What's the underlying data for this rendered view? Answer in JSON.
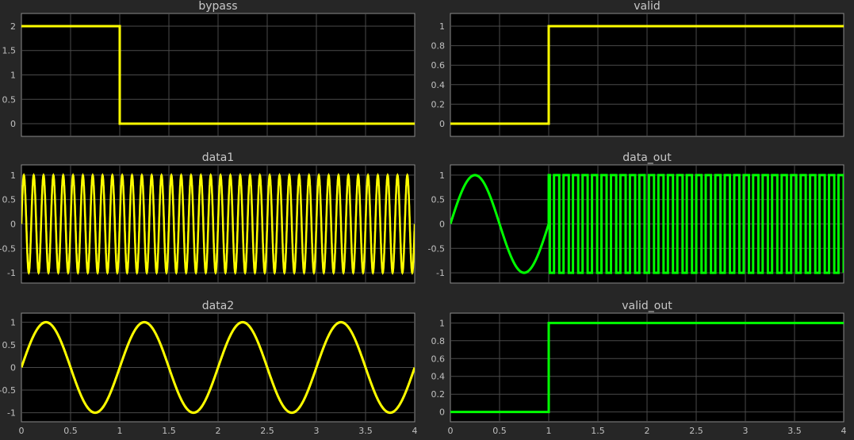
{
  "chart_data": [
    {
      "type": "line",
      "title": "bypass",
      "color": "#ffff00",
      "ylim": [
        -0.26,
        2.26
      ],
      "xlim": [
        0,
        4
      ],
      "yticks": [
        0,
        0.5,
        1,
        1.5,
        2
      ],
      "grid": true,
      "signal": {
        "kind": "step",
        "points": [
          [
            0,
            2
          ],
          [
            1,
            2
          ],
          [
            1,
            0
          ],
          [
            4,
            0
          ]
        ]
      }
    },
    {
      "type": "line",
      "title": "valid",
      "color": "#ffff00",
      "ylim": [
        -0.13,
        1.13
      ],
      "xlim": [
        0,
        4
      ],
      "yticks": [
        0,
        0.2,
        0.4,
        0.6,
        0.8,
        1
      ],
      "grid": true,
      "signal": {
        "kind": "step",
        "points": [
          [
            0,
            0
          ],
          [
            1,
            0
          ],
          [
            1,
            1
          ],
          [
            4,
            1
          ]
        ]
      }
    },
    {
      "type": "line",
      "title": "data1",
      "color": "#ffff00",
      "ylim": [
        -1.21,
        1.21
      ],
      "xlim": [
        0,
        4
      ],
      "yticks": [
        -1,
        -0.5,
        0,
        0.5,
        1
      ],
      "grid": true,
      "signal": {
        "kind": "sine",
        "amplitude": 1,
        "frequency_hz": 10
      }
    },
    {
      "type": "line",
      "title": "data_out",
      "color": "#00ff00",
      "ylim": [
        -1.21,
        1.21
      ],
      "xlim": [
        0,
        4
      ],
      "yticks": [
        -1,
        -0.5,
        0,
        0.5,
        1
      ],
      "grid": true,
      "signal": {
        "kind": "piecewise",
        "segments": [
          {
            "t": [
              0,
              1
            ],
            "kind": "sine",
            "amplitude": 1,
            "frequency_hz": 1
          },
          {
            "t": [
              1,
              4
            ],
            "kind": "square",
            "levels": [
              -1,
              1
            ]
          }
        ]
      }
    },
    {
      "type": "line",
      "title": "data2",
      "color": "#ffff00",
      "ylim": [
        -1.2,
        1.2
      ],
      "xlim": [
        0,
        4
      ],
      "yticks": [
        -1,
        -0.5,
        0,
        0.5,
        1
      ],
      "xticks": [
        0,
        0.5,
        1,
        1.5,
        2,
        2.5,
        3,
        3.5,
        4
      ],
      "grid": true,
      "signal": {
        "kind": "sine",
        "amplitude": 1,
        "frequency_hz": 1
      }
    },
    {
      "type": "line",
      "title": "valid_out",
      "color": "#00ff00",
      "ylim": [
        -0.11,
        1.11
      ],
      "xlim": [
        0,
        4
      ],
      "yticks": [
        0,
        0.2,
        0.4,
        0.6,
        0.8,
        1
      ],
      "xticks": [
        0,
        0.5,
        1,
        1.5,
        2,
        2.5,
        3,
        3.5,
        4
      ],
      "grid": true,
      "signal": {
        "kind": "step",
        "points": [
          [
            0,
            0
          ],
          [
            1,
            0
          ],
          [
            1,
            1
          ],
          [
            4,
            1
          ]
        ]
      }
    }
  ]
}
